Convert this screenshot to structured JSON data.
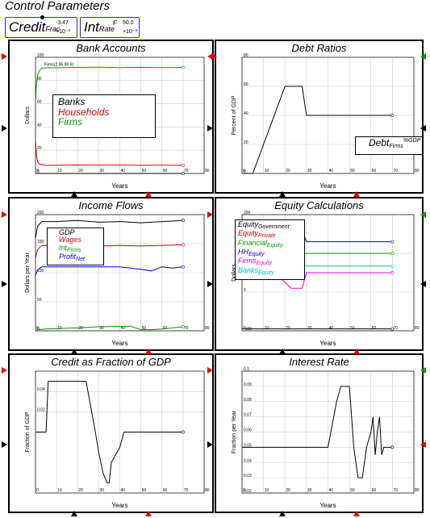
{
  "header": {
    "title": "Control Parameters"
  },
  "params": [
    {
      "name": "Credit",
      "sub": "Frac",
      "sup": "-3.47",
      "unit": "×10⁻²"
    },
    {
      "name": "Int",
      "sub": "Rate",
      "supF": "F",
      "sup": "50.0",
      "unit": "×10⁻³"
    }
  ],
  "colors": {
    "black": "#000000",
    "red": "#dd0000",
    "green": "#009900",
    "blue": "#0000dd",
    "magenta": "#dd00dd",
    "cyan": "#00bbbb",
    "grid": "#cccccc",
    "param_border": "#2b2bd0"
  },
  "chart_data": [
    {
      "id": "bank-accounts",
      "type": "line",
      "title": "Bank Accounts",
      "xlabel": "Years",
      "ylabel": "Dollars",
      "xlim": [
        0,
        80
      ],
      "ylim": [
        0,
        100
      ],
      "xticks": [
        0,
        10,
        20,
        30,
        40,
        50,
        60,
        70,
        80
      ],
      "yticks": [
        0,
        20,
        40,
        60,
        80,
        100
      ],
      "annotation": "Firms(2.85,90.6)",
      "legend": [
        {
          "label": "Banks",
          "color": "#000000"
        },
        {
          "label": "Households",
          "color": "#dd0000"
        },
        {
          "label": "Firms",
          "color": "#009900"
        }
      ],
      "series": [
        {
          "name": "Banks",
          "color": "#000000",
          "x": [
            0,
            70
          ],
          "y": [
            0,
            0
          ]
        },
        {
          "name": "Households",
          "color": "#dd0000",
          "x": [
            0,
            0.5,
            1,
            2,
            5,
            10,
            20,
            30,
            40,
            50,
            60,
            70
          ],
          "y": [
            28,
            15,
            10,
            8,
            7,
            7,
            7.3,
            7.1,
            7.2,
            7,
            7.1,
            7
          ]
        },
        {
          "name": "Firms",
          "color": "#009900",
          "x": [
            0,
            0.4,
            1,
            2,
            3,
            5,
            10,
            20,
            30,
            40,
            50,
            60,
            70
          ],
          "y": [
            60,
            75,
            85,
            89,
            90.6,
            91,
            91,
            91.3,
            91.5,
            91.2,
            91.4,
            91.2,
            91.3
          ]
        }
      ]
    },
    {
      "id": "debt-ratios",
      "type": "line",
      "title": "Debt Ratios",
      "xlabel": "Years",
      "ylabel": "Percent of GDP",
      "xlim": [
        0,
        80
      ],
      "ylim": [
        0,
        80
      ],
      "xticks": [
        0,
        10,
        20,
        30,
        40,
        50,
        60,
        70,
        80
      ],
      "yticks": [
        0,
        20,
        40,
        60,
        80
      ],
      "legend": [
        {
          "label": "Debt",
          "sub": "Firms",
          "sup": "%GDP",
          "color": "#000000"
        }
      ],
      "series": [
        {
          "name": "Debt Firms %GDP",
          "color": "#000000",
          "x": [
            0,
            5,
            20,
            22,
            28,
            30,
            50,
            70
          ],
          "y": [
            0,
            0,
            60,
            60,
            60,
            40,
            40,
            40
          ]
        }
      ]
    },
    {
      "id": "income-flows",
      "type": "line",
      "title": "Income Flows",
      "xlabel": "Years",
      "ylabel": "Dollars per Year",
      "xlim": [
        0,
        80
      ],
      "ylim": [
        0,
        200
      ],
      "xticks": [
        0,
        10,
        20,
        30,
        40,
        50,
        60,
        70,
        80
      ],
      "yticks": [
        0,
        50,
        100,
        150,
        200
      ],
      "legend": [
        {
          "label": "GDP",
          "color": "#000000"
        },
        {
          "label": "Wages",
          "color": "#dd0000"
        },
        {
          "label": "Int",
          "sub": "Firms",
          "color": "#009900"
        },
        {
          "label": "Profit",
          "sub": "Net",
          "color": "#0000dd"
        }
      ],
      "series": [
        {
          "name": "GDP",
          "color": "#000000",
          "x": [
            0,
            1,
            3,
            10,
            20,
            30,
            40,
            50,
            60,
            70
          ],
          "y": [
            160,
            180,
            188,
            188,
            190,
            187,
            188,
            186,
            188,
            190
          ]
        },
        {
          "name": "Wages",
          "color": "#dd0000",
          "x": [
            0,
            1,
            3,
            10,
            20,
            30,
            40,
            50,
            60,
            70
          ],
          "y": [
            125,
            140,
            147,
            147,
            149,
            146,
            147,
            146,
            147,
            148
          ]
        },
        {
          "name": "Int Firms",
          "color": "#009900",
          "x": [
            0,
            1,
            5,
            20,
            30,
            45,
            50,
            55,
            60,
            70
          ],
          "y": [
            0,
            2,
            3,
            5,
            7,
            8,
            2,
            2,
            3,
            7
          ]
        },
        {
          "name": "Profit Net",
          "color": "#0000dd",
          "x": [
            0,
            1,
            3,
            10,
            20,
            30,
            40,
            45,
            50,
            55,
            60,
            65,
            70
          ],
          "y": [
            95,
            105,
            110,
            110,
            110,
            110,
            110,
            108,
            106,
            103,
            110,
            108,
            110
          ]
        }
      ]
    },
    {
      "id": "equity-calculations",
      "type": "line",
      "title": "Equity Calculations",
      "xlabel": "Years",
      "ylabel": "Dollars",
      "xlim": [
        0,
        80
      ],
      "ylim": [
        -100,
        200
      ],
      "xticks": [
        0,
        10,
        20,
        30,
        40,
        50,
        60,
        70,
        80
      ],
      "yticks": [
        -100,
        0,
        100,
        200
      ],
      "legend": [
        {
          "label": "Equity",
          "sub": "Government",
          "color": "#000000"
        },
        {
          "label": "Equity",
          "sub": "Private",
          "color": "#dd0000"
        },
        {
          "label": "Financial",
          "sub": "Equity",
          "color": "#009900"
        },
        {
          "label": "HH",
          "sub": "Equity",
          "color": "#0000dd"
        },
        {
          "label": "Firms",
          "sub": "Equity",
          "color": "#dd00dd"
        },
        {
          "label": "Banks",
          "sub": "Equity",
          "color": "#00bbbb"
        }
      ],
      "series": [
        {
          "name": "Equity Government",
          "color": "#000000",
          "x": [
            0,
            70
          ],
          "y": [
            -95,
            -95
          ]
        },
        {
          "name": "Equity Private",
          "color": "#dd0000",
          "x": [
            0,
            2,
            5,
            10,
            20,
            30,
            50,
            70
          ],
          "y": [
            100,
            100,
            100,
            100,
            100,
            100,
            100,
            100
          ]
        },
        {
          "name": "Financial Equity",
          "color": "#009900",
          "x": [
            0,
            70
          ],
          "y": [
            100,
            100
          ]
        },
        {
          "name": "HH Equity",
          "color": "#0000dd",
          "x": [
            0,
            2,
            5,
            10,
            15,
            20,
            25,
            28,
            30,
            35,
            50,
            70
          ],
          "y": [
            80,
            75,
            76,
            90,
            100,
            140,
            160,
            160,
            130,
            130,
            130,
            130
          ]
        },
        {
          "name": "Firms Equity",
          "color": "#dd00dd",
          "x": [
            0,
            2,
            5,
            10,
            15,
            20,
            23,
            28,
            30,
            35,
            50,
            70
          ],
          "y": [
            88,
            85,
            80,
            65,
            50,
            25,
            10,
            10,
            50,
            50,
            50,
            50
          ]
        },
        {
          "name": "Banks Equity",
          "color": "#00bbbb",
          "x": [
            0,
            70
          ],
          "y": [
            67,
            67
          ]
        }
      ]
    },
    {
      "id": "credit-fraction-gdp",
      "type": "line",
      "title": "Credit as Fraction of GDP",
      "xlabel": "Years",
      "ylabel": "Fraction of GDP",
      "xlim": [
        0,
        80
      ],
      "ylim": [
        -0.06,
        0.06
      ],
      "xticks": [
        0,
        10,
        20,
        30,
        40,
        50,
        60,
        70,
        80
      ],
      "yticks": [
        0.02,
        0.04
      ],
      "series": [
        {
          "name": "Credit fraction",
          "color": "#000000",
          "x": [
            0,
            5,
            6,
            9,
            12,
            20,
            24,
            28,
            30,
            32,
            34,
            35,
            36,
            40,
            42,
            45,
            50,
            55,
            60,
            65,
            70
          ],
          "y": [
            0,
            0,
            0.05,
            0.05,
            0.05,
            0.05,
            0.05,
            0.005,
            -0.02,
            -0.04,
            -0.05,
            -0.05,
            -0.03,
            -0.015,
            0,
            0,
            0,
            0,
            0,
            0,
            0
          ]
        }
      ]
    },
    {
      "id": "interest-rate",
      "type": "line",
      "title": "Interest Rate",
      "xlabel": "Years",
      "ylabel": "Fraction per Year",
      "xlim": [
        0,
        80
      ],
      "ylim": [
        0.02,
        0.1
      ],
      "xticks": [
        0,
        10,
        20,
        30,
        40,
        50,
        60,
        70,
        80
      ],
      "yticks": [
        0.02,
        0.03,
        0.04,
        0.05,
        0.06,
        0.07,
        0.08,
        0.09,
        0.1
      ],
      "series": [
        {
          "name": "Interest rate",
          "color": "#000000",
          "x": [
            0,
            40,
            44,
            46,
            50,
            52,
            54,
            56,
            58,
            60,
            61,
            62,
            63,
            64,
            65,
            66,
            70
          ],
          "y": [
            0.05,
            0.05,
            0.08,
            0.09,
            0.09,
            0.05,
            0.03,
            0.03,
            0.05,
            0.06,
            0.07,
            0.045,
            0.06,
            0.07,
            0.045,
            0.05,
            0.05
          ]
        }
      ]
    }
  ]
}
